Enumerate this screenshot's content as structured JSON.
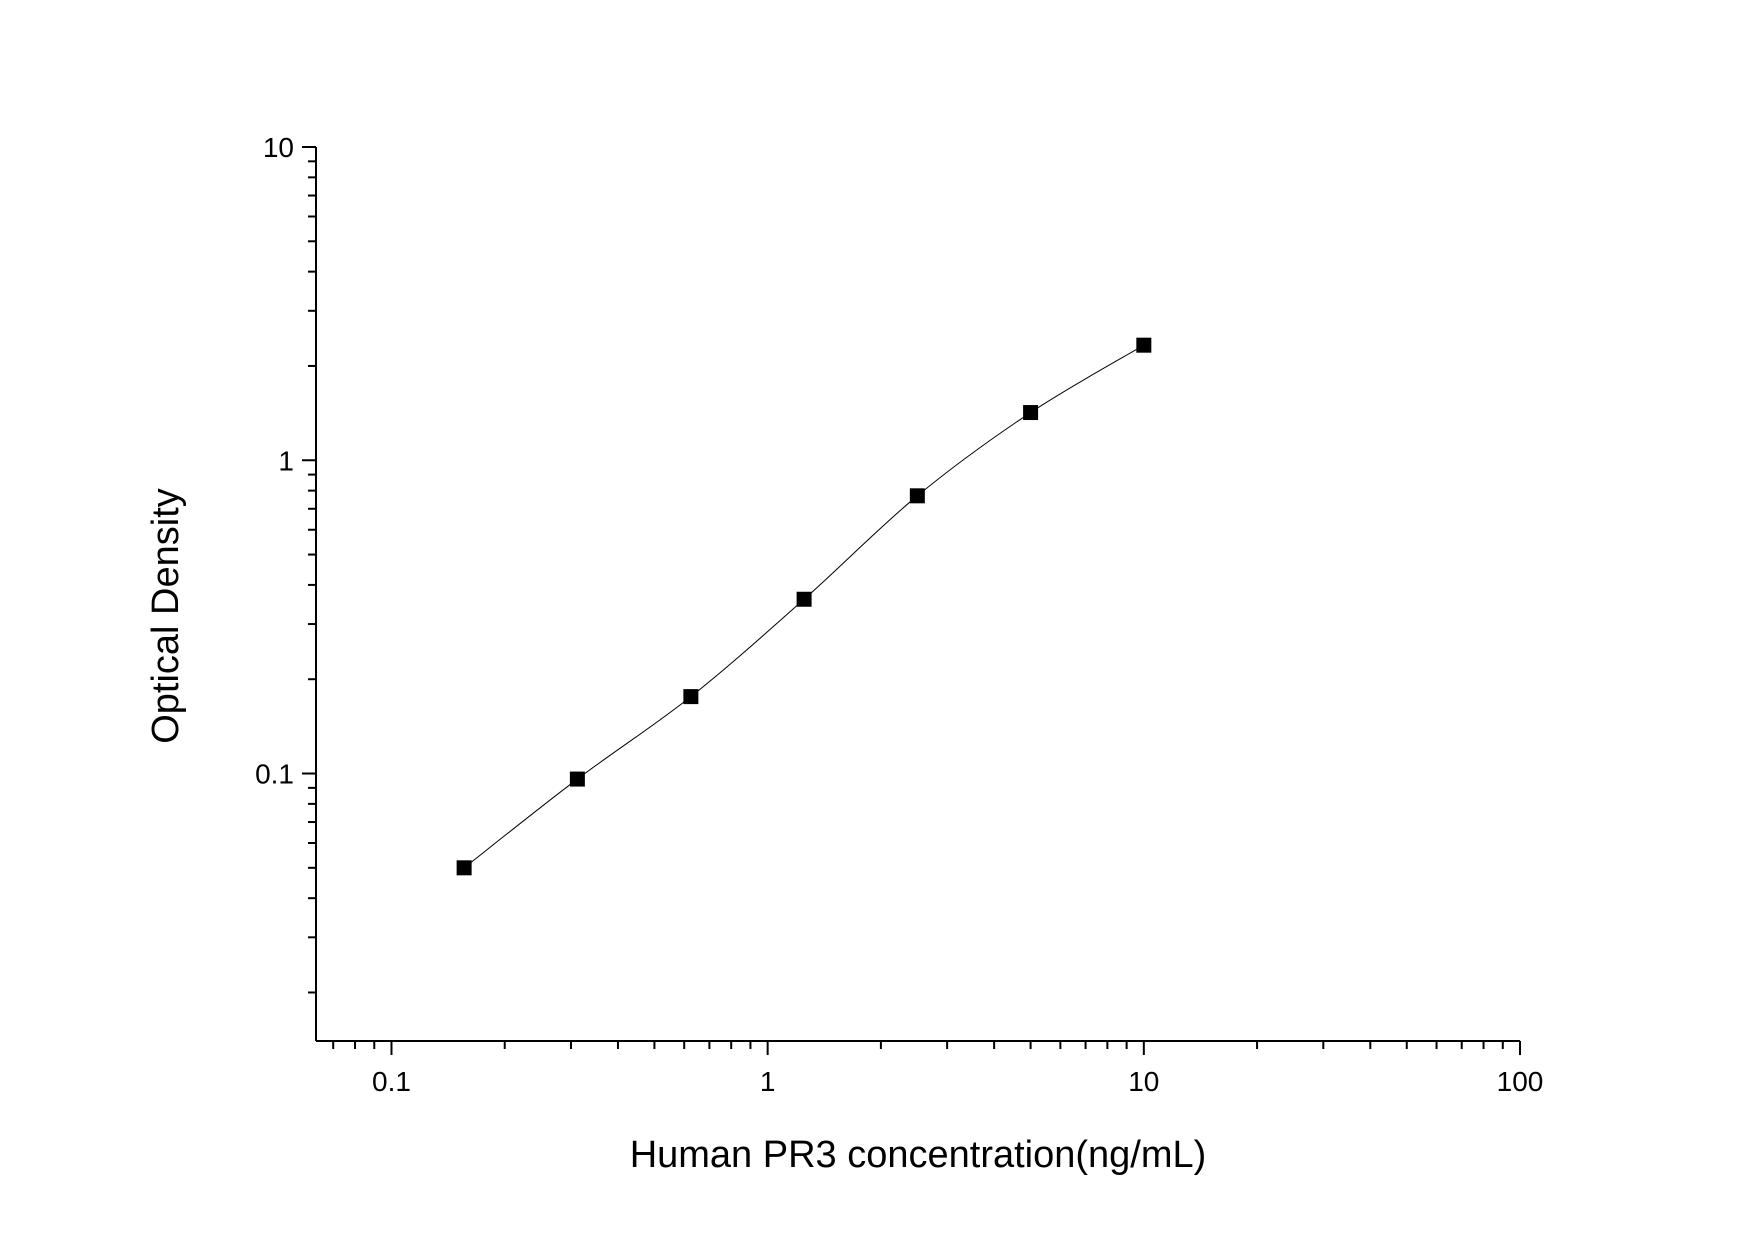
{
  "chart_data": {
    "type": "scatter",
    "title": "",
    "xlabel": "Human PR3 concentration(ng/mL)",
    "ylabel": "Optical Density",
    "xscale": "log",
    "yscale": "log",
    "xlim": [
      0.063,
      100
    ],
    "ylim": [
      0.014,
      10
    ],
    "x_ticks": [
      {
        "value": 0.1,
        "label": "0.1"
      },
      {
        "value": 1,
        "label": "1"
      },
      {
        "value": 10,
        "label": "10"
      },
      {
        "value": 100,
        "label": "100"
      }
    ],
    "y_ticks": [
      {
        "value": 0.1,
        "label": "0.1"
      },
      {
        "value": 1,
        "label": "1"
      },
      {
        "value": 10,
        "label": "10"
      }
    ],
    "grid": false,
    "legend": "none",
    "series": [
      {
        "marker": "square",
        "color": "#000000",
        "fit_curve": true,
        "x": [
          0.156,
          0.312,
          0.625,
          1.25,
          2.5,
          5,
          10
        ],
        "y": [
          0.05,
          0.096,
          0.176,
          0.36,
          0.77,
          1.42,
          2.33
        ]
      }
    ]
  }
}
